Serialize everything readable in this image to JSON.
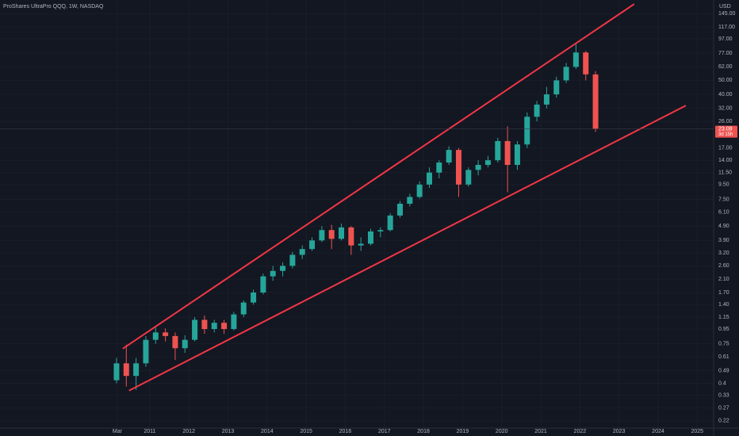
{
  "chart_data": {
    "type": "candlestick",
    "title": "ProShares UltraPro QQQ, 1W, NASDAQ",
    "currency": "USD",
    "log_scale": true,
    "grid": true,
    "up_color": "#26a69a",
    "down_color": "#ef5350",
    "x": [
      2010.15,
      2010.4,
      2010.65,
      2010.9,
      2011.15,
      2011.4,
      2011.65,
      2011.9,
      2012.15,
      2012.4,
      2012.65,
      2012.9,
      2013.15,
      2013.4,
      2013.65,
      2013.9,
      2014.15,
      2014.4,
      2014.65,
      2014.9,
      2015.15,
      2015.4,
      2015.65,
      2015.9,
      2016.15,
      2016.4,
      2016.65,
      2016.9,
      2017.15,
      2017.4,
      2017.65,
      2017.9,
      2018.15,
      2018.4,
      2018.65,
      2018.9,
      2019.15,
      2019.4,
      2019.65,
      2019.9,
      2020.15,
      2020.4,
      2020.65,
      2020.9,
      2021.15,
      2021.4,
      2021.65,
      2021.9,
      2022.15,
      2022.4
    ],
    "open": [
      0.42,
      0.55,
      0.45,
      0.55,
      0.8,
      0.9,
      0.85,
      0.7,
      0.8,
      1.1,
      0.95,
      1.05,
      0.95,
      1.2,
      1.45,
      1.7,
      2.2,
      2.4,
      2.6,
      3.1,
      3.4,
      3.9,
      4.6,
      4.0,
      4.8,
      3.6,
      3.7,
      4.5,
      4.6,
      5.8,
      7.0,
      7.8,
      9.5,
      11.5,
      13.5,
      16.5,
      9.5,
      12,
      13,
      14,
      19,
      13,
      18,
      28,
      34,
      40,
      50,
      62,
      78,
      55
    ],
    "high": [
      0.6,
      0.74,
      0.6,
      0.85,
      0.98,
      0.96,
      0.9,
      0.86,
      1.15,
      1.18,
      1.1,
      1.1,
      1.25,
      1.5,
      1.78,
      2.3,
      2.6,
      2.75,
      3.25,
      3.6,
      4.1,
      4.9,
      5.0,
      5.1,
      4.9,
      4.1,
      4.7,
      4.8,
      6.0,
      7.3,
      8.2,
      10,
      12.5,
      14,
      17.5,
      17,
      12.5,
      14,
      15,
      20,
      24,
      19,
      30,
      36,
      45,
      53,
      66,
      90,
      80,
      58
    ],
    "low": [
      0.4,
      0.38,
      0.36,
      0.52,
      0.75,
      0.78,
      0.58,
      0.65,
      0.78,
      0.88,
      0.9,
      0.88,
      0.93,
      1.15,
      1.4,
      1.65,
      2.05,
      2.2,
      2.5,
      2.9,
      3.3,
      3.8,
      3.4,
      3.9,
      3.1,
      3.3,
      3.6,
      4.1,
      4.5,
      5.6,
      6.7,
      7.6,
      9.0,
      10.5,
      13,
      7.8,
      9.2,
      11,
      12.5,
      13.5,
      8.4,
      12,
      17,
      26,
      32,
      38,
      48,
      60,
      50,
      22
    ],
    "close": [
      0.55,
      0.45,
      0.55,
      0.8,
      0.9,
      0.85,
      0.7,
      0.8,
      1.1,
      0.95,
      1.05,
      0.95,
      1.2,
      1.45,
      1.7,
      2.2,
      2.4,
      2.6,
      3.1,
      3.4,
      3.9,
      4.6,
      4.0,
      4.8,
      3.6,
      3.7,
      4.5,
      4.6,
      5.8,
      7.0,
      7.8,
      9.5,
      11.5,
      13.5,
      16.5,
      9.5,
      12,
      13,
      14,
      19,
      13,
      18,
      28,
      34,
      40,
      50,
      62,
      78,
      55,
      23.08
    ],
    "last_price": 23.08,
    "countdown": "3d 15h",
    "trend_lines": [
      {
        "color": "#f23645",
        "x": [
          2010.31,
          2023.39
        ],
        "y": [
          0.695,
          168.8
        ]
      },
      {
        "color": "#f23645",
        "x": [
          2010.47,
          2024.71
        ],
        "y": [
          0.356,
          33.5
        ]
      }
    ],
    "xlim": [
      2007.17,
      2025.42
    ],
    "xticks": [
      {
        "value": 2010.17,
        "label": "Mar"
      },
      2011,
      2012,
      2013,
      2014,
      2015,
      2016,
      2017,
      2018,
      2019,
      2020,
      2021,
      2022,
      2023,
      2024,
      2025
    ],
    "ylim": [
      0.196,
      180
    ],
    "yticks": [
      {
        "value": 145,
        "label": "145.00"
      },
      {
        "value": 117,
        "label": "117.00"
      },
      {
        "value": 97,
        "label": "97.00"
      },
      {
        "value": 77,
        "label": "77.00"
      },
      {
        "value": 62,
        "label": "62.00"
      },
      {
        "value": 50,
        "label": "50.00"
      },
      {
        "value": 40,
        "label": "40.00"
      },
      {
        "value": 32,
        "label": "32.00"
      },
      {
        "value": 26,
        "label": "26.00"
      },
      {
        "value": 17,
        "label": "17.00"
      },
      {
        "value": 14,
        "label": "14.00"
      },
      {
        "value": 11.5,
        "label": "11.50"
      },
      {
        "value": 9.5,
        "label": "9.50"
      },
      {
        "value": 7.5,
        "label": "7.50"
      },
      {
        "value": 6.1,
        "label": "6.10"
      },
      {
        "value": 4.9,
        "label": "4.90"
      },
      {
        "value": 3.9,
        "label": "3.90"
      },
      {
        "value": 3.2,
        "label": "3.20"
      },
      {
        "value": 2.6,
        "label": "2.60"
      },
      {
        "value": 2.1,
        "label": "2.10"
      },
      {
        "value": 1.7,
        "label": "1.70"
      },
      {
        "value": 1.4,
        "label": "1.40"
      },
      {
        "value": 1.15,
        "label": "1.15"
      },
      0.95,
      0.75,
      0.61,
      0.49,
      0.4,
      0.33,
      0.27,
      0.22
    ]
  }
}
